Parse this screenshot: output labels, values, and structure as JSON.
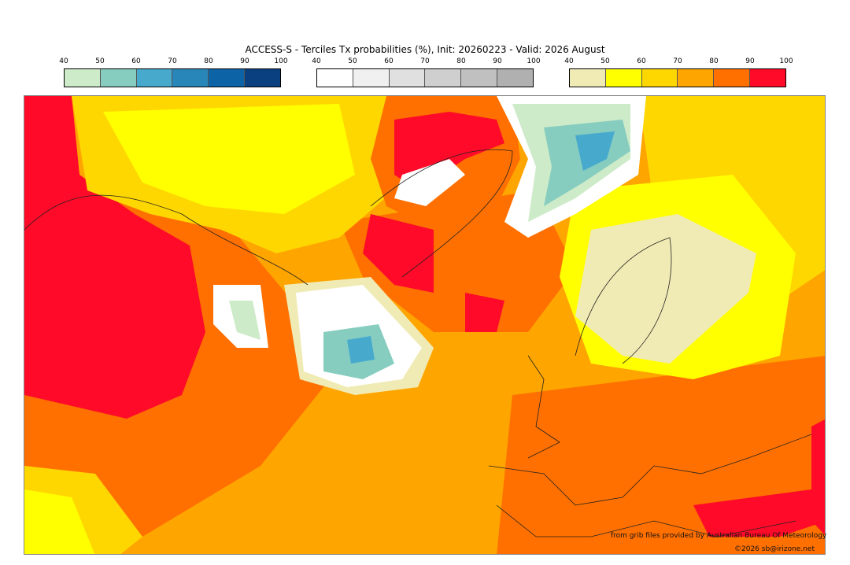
{
  "title": "ACCESS-S - Terciles Tx probabilities (%), Init: 20260223 - Valid: 2026 August",
  "colorbars": [
    {
      "name": "below-normal",
      "ticks": [
        "40",
        "50",
        "60",
        "70",
        "80",
        "90",
        "100"
      ],
      "colors": [
        "#cdebc8",
        "#86cdc0",
        "#47aacd",
        "#2886b8",
        "#0c64a6",
        "#0a4080"
      ]
    },
    {
      "name": "near-normal",
      "ticks": [
        "40",
        "50",
        "60",
        "70",
        "80",
        "90",
        "100"
      ],
      "colors": [
        "#ffffff",
        "#f0f0f0",
        "#e0e0e0",
        "#cfcfcf",
        "#c0c0c0",
        "#b0b0b0"
      ]
    },
    {
      "name": "above-normal",
      "ticks": [
        "40",
        "50",
        "60",
        "70",
        "80",
        "90",
        "100"
      ],
      "colors": [
        "#f0ebb4",
        "#ffff00",
        "#ffd700",
        "#ffa500",
        "#ff7000",
        "#ff0a28"
      ]
    }
  ],
  "credit": "from grib files provided by Australian Bureau Of Meteorology",
  "copyright": "©2026 sb@irizone.net"
}
